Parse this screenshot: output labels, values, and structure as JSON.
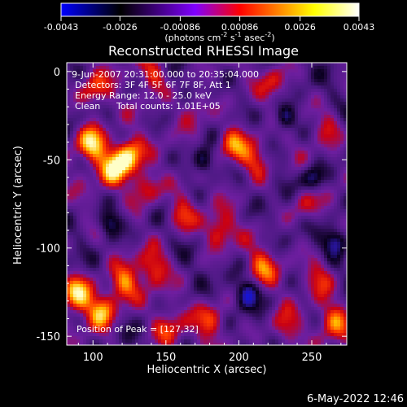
{
  "colorbar": {
    "ticks": [
      "-0.0043",
      "-0.0026",
      "-0.00086",
      "0.00086",
      "0.0026",
      "0.0043"
    ],
    "tick_values": [
      -0.0043,
      -0.0026,
      -0.00086,
      0.00086,
      0.0026,
      0.0043
    ],
    "unit_main": "(photons cm",
    "unit_exp1": "-2",
    "unit_mid1": " s",
    "unit_exp2": "-1",
    "unit_mid2": " asec",
    "unit_exp3": "-2",
    "unit_end": ")",
    "colors": [
      "#0000ff",
      "#000000",
      "#8000ff",
      "#ff0000",
      "#ffff00",
      "#ffffff"
    ]
  },
  "chart_data": {
    "type": "heatmap",
    "title": "Reconstructed RHESSI Image",
    "xlabel": "Heliocentric X (arcsec)",
    "ylabel": "Heliocentric Y (arcsec)",
    "xlim": [
      82,
      274
    ],
    "ylim": [
      -155,
      5
    ],
    "xticks": [
      100,
      150,
      200,
      250
    ],
    "yticks": [
      0,
      -50,
      -100,
      -150
    ],
    "value_range": [
      -0.0043,
      0.0043
    ],
    "peak_position": [
      127,
      32
    ],
    "annotations": {
      "time": "9-Jun-2007 20:31:00.000 to 20:35:04.000",
      "detectors": "Detectors: 3F 4F 5F 6F 7F 8F, Att 1",
      "energy": "Energy Range: 12.0 - 25.0 keV",
      "method": "Clean",
      "counts": "Total counts: 1.01E+05",
      "peak": "Position of Peak = [127,32]"
    },
    "hotspots": [
      {
        "x": 98,
        "y": -40,
        "strength": 1.0
      },
      {
        "x": 123,
        "y": -47,
        "strength": 1.0
      },
      {
        "x": 112,
        "y": -55,
        "strength": 0.8
      },
      {
        "x": 88,
        "y": -125,
        "strength": 0.95
      },
      {
        "x": 105,
        "y": -135,
        "strength": 0.85
      },
      {
        "x": 120,
        "y": -120,
        "strength": 0.7
      },
      {
        "x": 140,
        "y": -110,
        "strength": 0.55
      },
      {
        "x": 135,
        "y": -65,
        "strength": 0.6
      },
      {
        "x": 160,
        "y": -80,
        "strength": 0.55
      },
      {
        "x": 195,
        "y": -40,
        "strength": 0.75
      },
      {
        "x": 210,
        "y": -50,
        "strength": 0.6
      },
      {
        "x": 185,
        "y": -90,
        "strength": 0.6
      },
      {
        "x": 215,
        "y": -110,
        "strength": 0.55
      },
      {
        "x": 255,
        "y": -115,
        "strength": 0.5
      },
      {
        "x": 265,
        "y": -140,
        "strength": 0.6
      },
      {
        "x": 230,
        "y": -145,
        "strength": 0.5
      },
      {
        "x": 180,
        "y": -140,
        "strength": 0.55
      },
      {
        "x": 150,
        "y": -145,
        "strength": 0.5
      },
      {
        "x": 245,
        "y": -75,
        "strength": 0.45
      },
      {
        "x": 260,
        "y": -30,
        "strength": 0.4
      },
      {
        "x": 170,
        "y": -20,
        "strength": 0.45
      },
      {
        "x": 140,
        "y": 0,
        "strength": 0.5
      },
      {
        "x": 100,
        "y": -10,
        "strength": 0.55
      },
      {
        "x": 225,
        "y": -5,
        "strength": 0.4
      }
    ],
    "coldspots": [
      {
        "x": 250,
        "y": -60
      },
      {
        "x": 265,
        "y": -95
      },
      {
        "x": 230,
        "y": -25
      },
      {
        "x": 175,
        "y": -50
      },
      {
        "x": 205,
        "y": -125
      },
      {
        "x": 110,
        "y": -85
      }
    ]
  },
  "footer": {
    "date": "6-May-2022 12:46"
  }
}
